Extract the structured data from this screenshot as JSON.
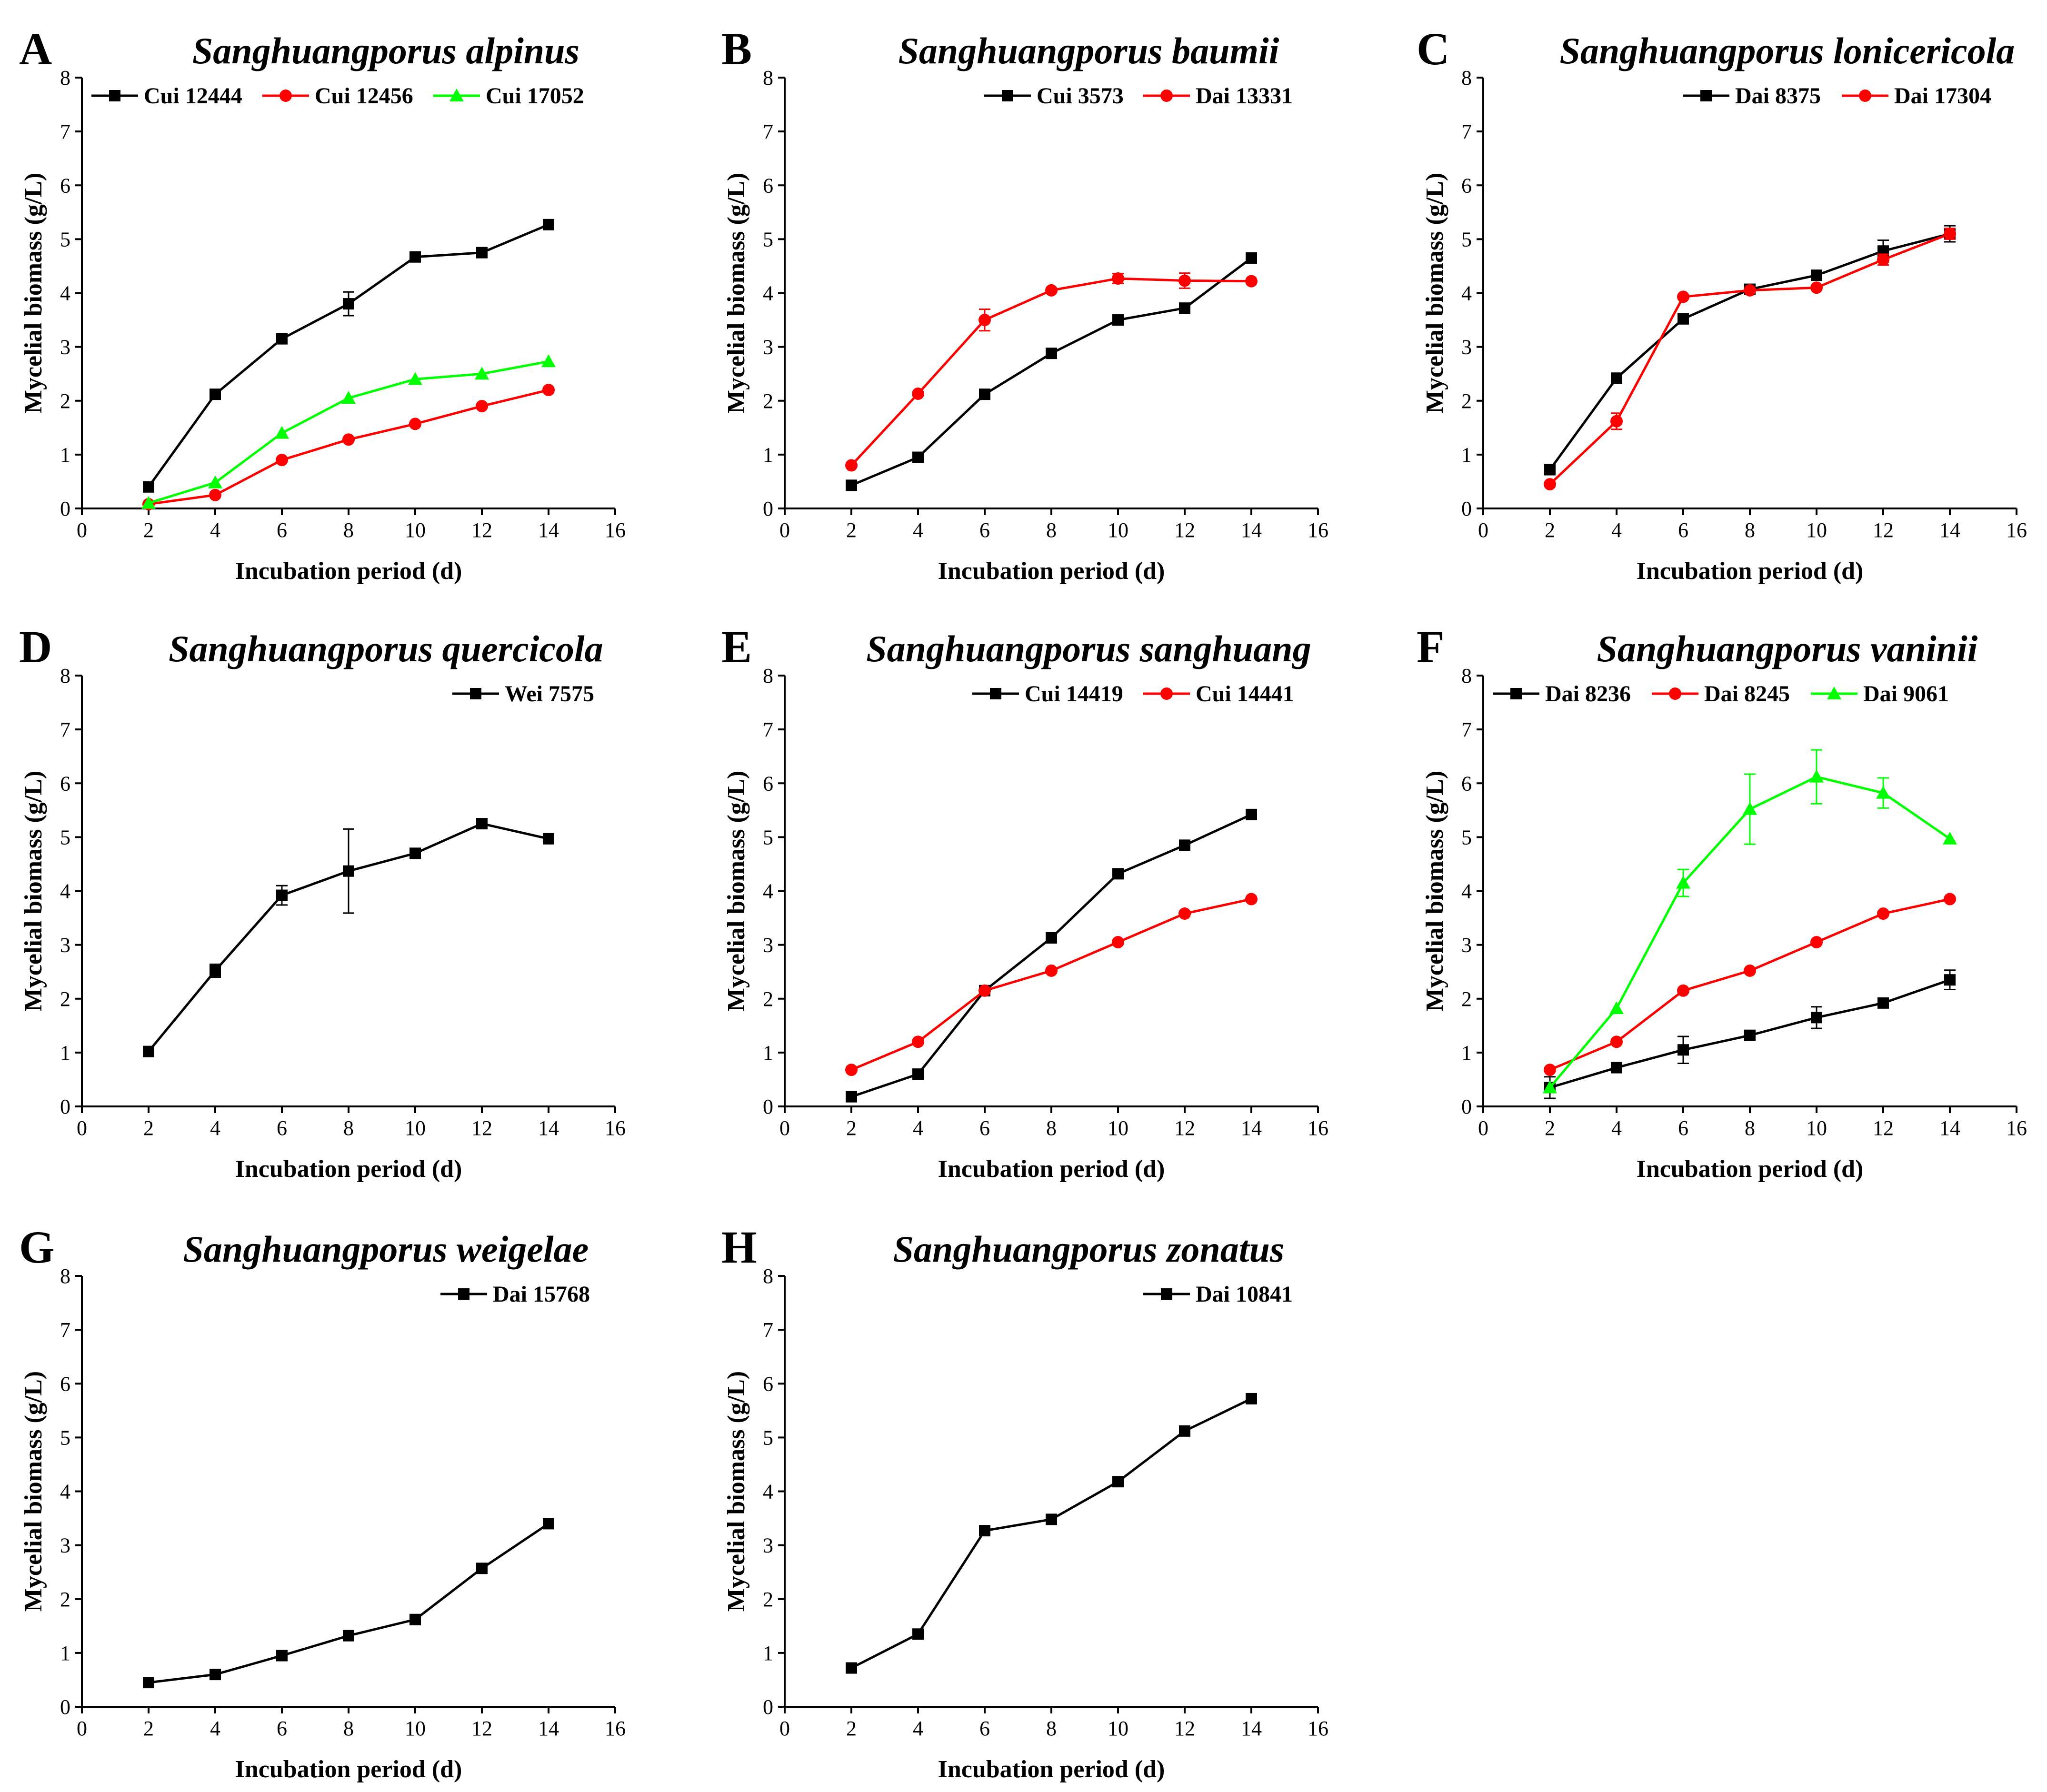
{
  "figure": {
    "x_axis_label": "Incubation period (d)",
    "y_axis_label": "Mycelial biomass (g/L)",
    "colors": {
      "black": "#000000",
      "red": "#ff0000",
      "green": "#00ff00"
    }
  },
  "chart_data": [
    {
      "panel": "A",
      "type": "line",
      "title": "Sanghuangporus alpinus",
      "xlabel": "Incubation period (d)",
      "ylabel": "Mycelial biomass (g/L)",
      "xlim": [
        0,
        16
      ],
      "ylim": [
        0,
        8
      ],
      "xticks": [
        "0",
        "2",
        "4",
        "6",
        "8",
        "10",
        "12",
        "14",
        "16"
      ],
      "yticks": [
        "0",
        "1",
        "2",
        "3",
        "4",
        "5",
        "6",
        "7",
        "8"
      ],
      "x": [
        2,
        4,
        6,
        8,
        10,
        12,
        14
      ],
      "legend_position": "top-left",
      "series": [
        {
          "name": "Cui 12444",
          "color": "#000000",
          "marker": "square",
          "values": [
            0.4,
            2.12,
            3.15,
            3.8,
            4.67,
            4.75,
            5.27
          ],
          "errors": [
            0.03,
            0.04,
            0.05,
            0.22,
            0.04,
            0.05,
            0.04
          ]
        },
        {
          "name": "Cui 12456",
          "color": "#ff0000",
          "marker": "circle",
          "values": [
            0.08,
            0.25,
            0.9,
            1.28,
            1.57,
            1.9,
            2.2
          ],
          "errors": [
            0.02,
            0.02,
            0.03,
            0.03,
            0.03,
            0.03,
            0.03
          ]
        },
        {
          "name": "Cui 17052",
          "color": "#00ff00",
          "marker": "triangle",
          "values": [
            0.1,
            0.48,
            1.4,
            2.05,
            2.4,
            2.5,
            2.73
          ],
          "errors": [
            0.02,
            0.03,
            0.04,
            0.04,
            0.04,
            0.04,
            0.04
          ]
        }
      ]
    },
    {
      "panel": "B",
      "type": "line",
      "title": "Sanghuangporus baumii",
      "xlabel": "Incubation period (d)",
      "ylabel": "Mycelial biomass (g/L)",
      "xlim": [
        0,
        16
      ],
      "ylim": [
        0,
        8
      ],
      "xticks": [
        "0",
        "2",
        "4",
        "6",
        "8",
        "10",
        "12",
        "14",
        "16"
      ],
      "yticks": [
        "0",
        "1",
        "2",
        "3",
        "4",
        "5",
        "6",
        "7",
        "8"
      ],
      "x": [
        2,
        4,
        6,
        8,
        10,
        12,
        14
      ],
      "legend_position": "top-right",
      "series": [
        {
          "name": "Cui 3573",
          "color": "#000000",
          "marker": "square",
          "values": [
            0.43,
            0.95,
            2.12,
            2.88,
            3.5,
            3.72,
            4.65
          ],
          "errors": [
            0.02,
            0.03,
            0.04,
            0.03,
            0.03,
            0.03,
            0.03
          ]
        },
        {
          "name": "Dai 13331",
          "color": "#ff0000",
          "marker": "circle",
          "values": [
            0.8,
            2.13,
            3.5,
            4.05,
            4.27,
            4.23,
            4.22
          ],
          "errors": [
            0.03,
            0.05,
            0.2,
            0.04,
            0.09,
            0.14,
            0.05
          ]
        }
      ]
    },
    {
      "panel": "C",
      "type": "line",
      "title": "Sanghuangporus lonicericola",
      "xlabel": "Incubation period (d)",
      "ylabel": "Mycelial biomass (g/L)",
      "xlim": [
        0,
        16
      ],
      "ylim": [
        0,
        8
      ],
      "xticks": [
        "0",
        "2",
        "4",
        "6",
        "8",
        "10",
        "12",
        "14",
        "16"
      ],
      "yticks": [
        "0",
        "1",
        "2",
        "3",
        "4",
        "5",
        "6",
        "7",
        "8"
      ],
      "x": [
        2,
        4,
        6,
        8,
        10,
        12,
        14
      ],
      "legend_position": "top-right",
      "series": [
        {
          "name": "Dai 8375",
          "color": "#000000",
          "marker": "square",
          "values": [
            0.72,
            2.42,
            3.52,
            4.07,
            4.33,
            4.78,
            5.1
          ],
          "errors": [
            0.03,
            0.04,
            0.04,
            0.03,
            0.04,
            0.2,
            0.15
          ]
        },
        {
          "name": "Dai 17304",
          "color": "#ff0000",
          "marker": "circle",
          "values": [
            0.45,
            1.62,
            3.93,
            4.05,
            4.1,
            4.62,
            5.1
          ],
          "errors": [
            0.03,
            0.15,
            0.04,
            0.03,
            0.04,
            0.1,
            0.1
          ]
        }
      ]
    },
    {
      "panel": "D",
      "type": "line",
      "title": "Sanghuangporus quercicola",
      "xlabel": "Incubation period (d)",
      "ylabel": "Mycelial biomass (g/L)",
      "xlim": [
        0,
        16
      ],
      "ylim": [
        0,
        8
      ],
      "xticks": [
        "0",
        "2",
        "4",
        "6",
        "8",
        "10",
        "12",
        "14",
        "16"
      ],
      "yticks": [
        "0",
        "1",
        "2",
        "3",
        "4",
        "5",
        "6",
        "7",
        "8"
      ],
      "x": [
        2,
        4,
        6,
        8,
        10,
        12,
        14
      ],
      "legend_position": "top-right",
      "series": [
        {
          "name": "Wei 7575",
          "color": "#000000",
          "marker": "square",
          "values": [
            1.02,
            2.52,
            3.92,
            4.37,
            4.7,
            5.25,
            4.97
          ],
          "errors": [
            0.06,
            0.12,
            0.18,
            0.78,
            0.05,
            0.07,
            0.05
          ]
        }
      ]
    },
    {
      "panel": "E",
      "type": "line",
      "title": "Sanghuangporus sanghuang",
      "xlabel": "Incubation period (d)",
      "ylabel": "Mycelial biomass (g/L)",
      "xlim": [
        0,
        16
      ],
      "ylim": [
        0,
        8
      ],
      "xticks": [
        "0",
        "2",
        "4",
        "6",
        "8",
        "10",
        "12",
        "14",
        "16"
      ],
      "yticks": [
        "0",
        "1",
        "2",
        "3",
        "4",
        "5",
        "6",
        "7",
        "8"
      ],
      "x": [
        2,
        4,
        6,
        8,
        10,
        12,
        14
      ],
      "legend_position": "top-right",
      "series": [
        {
          "name": "Cui 14419",
          "color": "#000000",
          "marker": "square",
          "values": [
            0.18,
            0.6,
            2.15,
            3.13,
            4.32,
            4.85,
            5.42
          ],
          "errors": [
            0.02,
            0.03,
            0.04,
            0.04,
            0.04,
            0.04,
            0.04
          ]
        },
        {
          "name": "Cui 14441",
          "color": "#ff0000",
          "marker": "circle",
          "values": [
            0.68,
            1.2,
            2.15,
            2.52,
            3.05,
            3.58,
            3.85
          ],
          "errors": [
            0.02,
            0.03,
            0.04,
            0.04,
            0.04,
            0.04,
            0.04
          ]
        }
      ]
    },
    {
      "panel": "F",
      "type": "line",
      "title": "Sanghuangporus vaninii",
      "xlabel": "Incubation period (d)",
      "ylabel": "Mycelial biomass (g/L)",
      "xlim": [
        0,
        16
      ],
      "ylim": [
        0,
        8
      ],
      "xticks": [
        "0",
        "2",
        "4",
        "6",
        "8",
        "10",
        "12",
        "14",
        "16"
      ],
      "yticks": [
        "0",
        "1",
        "2",
        "3",
        "4",
        "5",
        "6",
        "7",
        "8"
      ],
      "x": [
        2,
        4,
        6,
        8,
        10,
        12,
        14
      ],
      "legend_position": "top",
      "series": [
        {
          "name": "Dai 8236",
          "color": "#000000",
          "marker": "square",
          "values": [
            0.35,
            0.72,
            1.05,
            1.32,
            1.65,
            1.92,
            2.35
          ],
          "errors": [
            0.2,
            0.04,
            0.25,
            0.06,
            0.2,
            0.06,
            0.18
          ]
        },
        {
          "name": "Dai 8245",
          "color": "#ff0000",
          "marker": "circle",
          "values": [
            0.68,
            1.2,
            2.15,
            2.52,
            3.05,
            3.58,
            3.85
          ],
          "errors": [
            0.03,
            0.03,
            0.04,
            0.04,
            0.04,
            0.04,
            0.04
          ]
        },
        {
          "name": "Dai 9061",
          "color": "#00ff00",
          "marker": "triangle",
          "values": [
            0.35,
            1.82,
            4.15,
            5.52,
            6.12,
            5.82,
            4.97
          ],
          "errors": [
            0.05,
            0.05,
            0.25,
            0.65,
            0.5,
            0.28,
            0.06
          ]
        }
      ]
    },
    {
      "panel": "G",
      "type": "line",
      "title": "Sanghuangporus weigelae",
      "xlabel": "Incubation period (d)",
      "ylabel": "Mycelial biomass (g/L)",
      "xlim": [
        0,
        16
      ],
      "ylim": [
        0,
        8
      ],
      "xticks": [
        "0",
        "2",
        "4",
        "6",
        "8",
        "10",
        "12",
        "14",
        "16"
      ],
      "yticks": [
        "0",
        "1",
        "2",
        "3",
        "4",
        "5",
        "6",
        "7",
        "8"
      ],
      "x": [
        2,
        4,
        6,
        8,
        10,
        12,
        14
      ],
      "legend_position": "top-right",
      "series": [
        {
          "name": "Dai 15768",
          "color": "#000000",
          "marker": "square",
          "values": [
            0.45,
            0.6,
            0.95,
            1.32,
            1.62,
            2.57,
            3.4
          ],
          "errors": [
            0.02,
            0.02,
            0.03,
            0.03,
            0.03,
            0.04,
            0.04
          ]
        }
      ]
    },
    {
      "panel": "H",
      "type": "line",
      "title": "Sanghuangporus zonatus",
      "xlabel": "Incubation period (d)",
      "ylabel": "Mycelial biomass (g/L)",
      "xlim": [
        0,
        16
      ],
      "ylim": [
        0,
        8
      ],
      "xticks": [
        "0",
        "2",
        "4",
        "6",
        "8",
        "10",
        "12",
        "14",
        "16"
      ],
      "yticks": [
        "0",
        "1",
        "2",
        "3",
        "4",
        "5",
        "6",
        "7",
        "8"
      ],
      "x": [
        2,
        4,
        6,
        8,
        10,
        12,
        14
      ],
      "legend_position": "top-right",
      "series": [
        {
          "name": "Dai 10841",
          "color": "#000000",
          "marker": "square",
          "values": [
            0.72,
            1.35,
            3.27,
            3.48,
            4.18,
            5.12,
            5.72
          ],
          "errors": [
            0.02,
            0.03,
            0.04,
            0.04,
            0.04,
            0.04,
            0.04
          ]
        }
      ]
    }
  ]
}
